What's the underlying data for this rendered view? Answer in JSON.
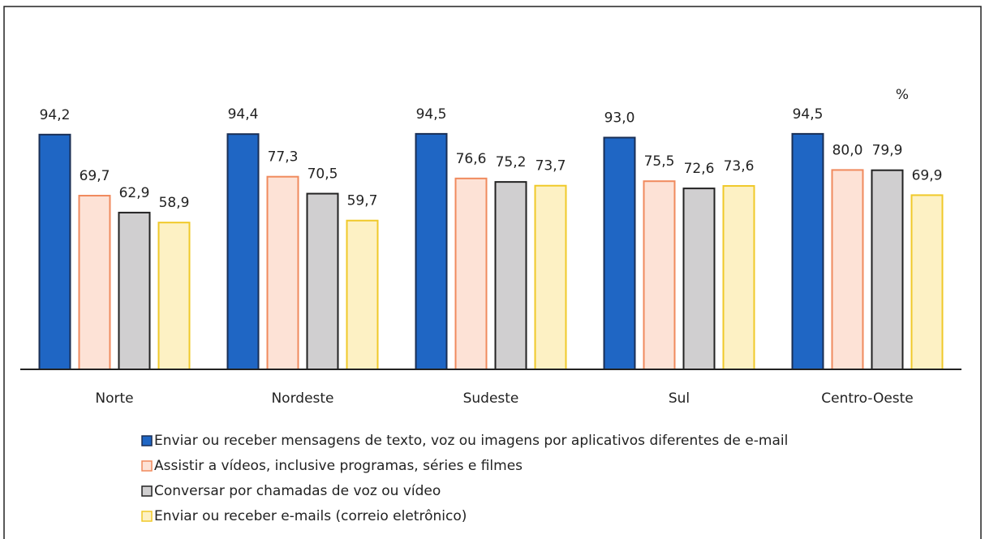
{
  "chart_data": {
    "type": "bar",
    "unit_label": "%",
    "categories": [
      "Norte",
      "Nordeste",
      "Sudeste",
      "Sul",
      "Centro-Oeste"
    ],
    "series": [
      {
        "name": "Enviar ou receber mensagens de texto, voz ou imagens por aplicativos diferentes de e-mail",
        "color": "#1f66c4",
        "edgecolor": "#1a2f55",
        "values": [
          94.2,
          94.4,
          94.5,
          93.0,
          94.5
        ],
        "value_labels": [
          "94,2",
          "94,4",
          "94,5",
          "93,0",
          "94,5"
        ]
      },
      {
        "name": "Assistir a vídeos, inclusive programas, séries e filmes",
        "color": "#fde2d6",
        "edgecolor": "#f08a5d",
        "values": [
          69.7,
          77.3,
          76.6,
          75.5,
          80.0
        ],
        "value_labels": [
          "69,7",
          "77,3",
          "76,6",
          "75,5",
          "80,0"
        ]
      },
      {
        "name": "Conversar por chamadas de voz ou vídeo",
        "color": "#d0cfd0",
        "edgecolor": "#222222",
        "values": [
          62.9,
          70.5,
          75.2,
          72.6,
          79.9
        ],
        "value_labels": [
          "62,9",
          "70,5",
          "75,2",
          "72,6",
          "79,9"
        ]
      },
      {
        "name": "Enviar ou receber e-mails (correio eletrônico)",
        "color": "#fdf1c4",
        "edgecolor": "#f0c929",
        "values": [
          58.9,
          59.7,
          73.7,
          73.6,
          69.9
        ],
        "value_labels": [
          "58,9",
          "59,7",
          "73,7",
          "73,6",
          "69,9"
        ]
      }
    ],
    "ylim": [
      0,
      100
    ]
  }
}
